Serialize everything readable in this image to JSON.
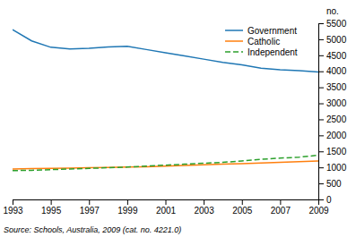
{
  "chart_data": {
    "type": "line",
    "x": [
      1993,
      1994,
      1995,
      1996,
      1997,
      1998,
      1999,
      2000,
      2001,
      2002,
      2003,
      2004,
      2005,
      2006,
      2007,
      2008,
      2009
    ],
    "series": [
      {
        "name": "Government",
        "line_style": "solid",
        "values": [
          5300,
          4950,
          4750,
          4700,
          4720,
          4760,
          4780,
          4680,
          4580,
          4480,
          4380,
          4280,
          4200,
          4100,
          4050,
          4020,
          3980
        ]
      },
      {
        "name": "Catholic",
        "line_style": "solid",
        "values": [
          950,
          960,
          970,
          980,
          990,
          1000,
          1010,
          1020,
          1040,
          1060,
          1080,
          1100,
          1120,
          1140,
          1160,
          1180,
          1200
        ]
      },
      {
        "name": "Independent",
        "line_style": "dashed",
        "values": [
          900,
          910,
          930,
          950,
          970,
          990,
          1010,
          1040,
          1070,
          1100,
          1130,
          1160,
          1200,
          1250,
          1290,
          1320,
          1380
        ]
      }
    ],
    "xlim": [
      1993,
      2009
    ],
    "xticks": [
      1993,
      1995,
      1997,
      1999,
      2001,
      2003,
      2005,
      2007,
      2009
    ],
    "ylim": [
      0,
      5500
    ],
    "yticks": [
      0,
      500,
      1000,
      1500,
      2000,
      2500,
      3000,
      3500,
      4000,
      4500,
      5000,
      5500
    ],
    "ylabel": "no.",
    "source": "Source: Schools, Australia, 2009 (cat. no. 4221.0)",
    "legend": "upper right",
    "grid": false
  }
}
